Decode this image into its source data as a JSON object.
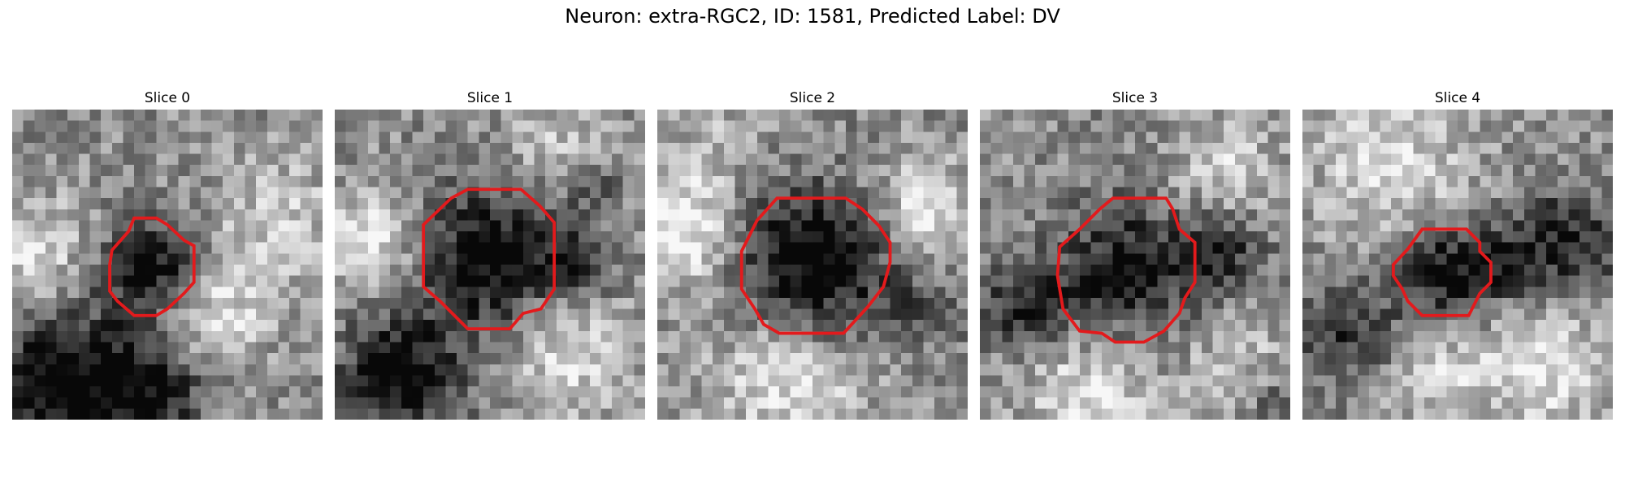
{
  "figure": {
    "title": "Neuron: extra-RGC2, ID: 1581, Predicted Label: DV"
  },
  "panels": [
    {
      "title": "Slice 0"
    },
    {
      "title": "Slice 1"
    },
    {
      "title": "Slice 2"
    },
    {
      "title": "Slice 3"
    },
    {
      "title": "Slice 4"
    }
  ],
  "colors": {
    "outline": "#e31a1c",
    "background": "#ffffff"
  }
}
